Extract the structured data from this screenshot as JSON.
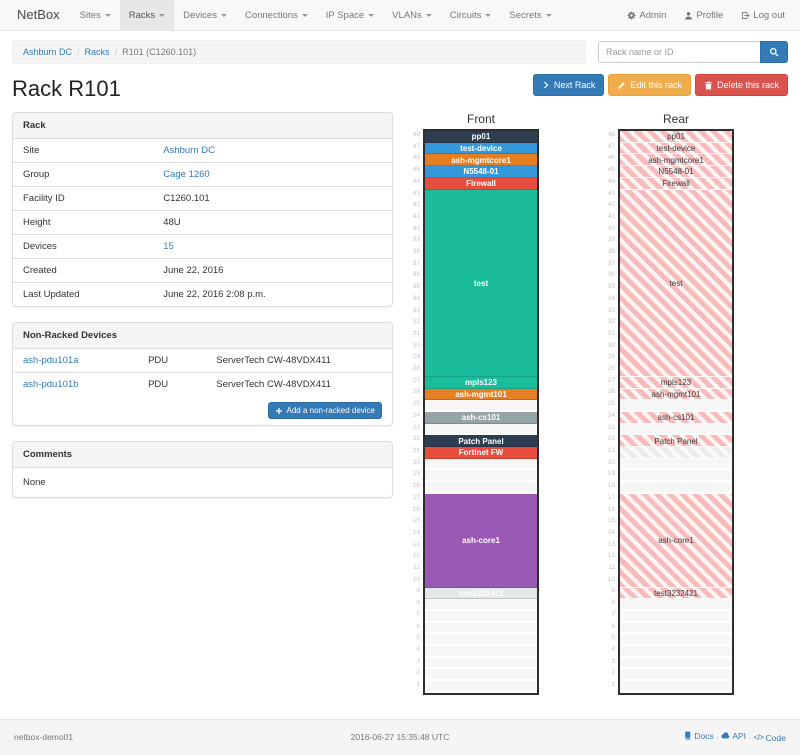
{
  "nav": {
    "brand": "NetBox",
    "items": [
      {
        "label": "Sites",
        "active": false
      },
      {
        "label": "Racks",
        "active": true
      },
      {
        "label": "Devices",
        "active": false
      },
      {
        "label": "Connections",
        "active": false
      },
      {
        "label": "IP Space",
        "active": false
      },
      {
        "label": "VLANs",
        "active": false
      },
      {
        "label": "Circuits",
        "active": false
      },
      {
        "label": "Secrets",
        "active": false
      }
    ],
    "right": [
      {
        "label": "Admin",
        "icon": "gear"
      },
      {
        "label": "Profile",
        "icon": "person"
      },
      {
        "label": "Log out",
        "icon": "logout"
      }
    ]
  },
  "breadcrumb": {
    "items": [
      {
        "label": "Ashburn DC",
        "link": true
      },
      {
        "label": "Racks",
        "link": true
      },
      {
        "label": "R101 (C1260.101)",
        "link": false
      }
    ]
  },
  "search": {
    "placeholder": "Rack name or ID"
  },
  "page": {
    "title": "Rack R101"
  },
  "actions": {
    "next": "Next Rack",
    "edit": "Edit this rack",
    "delete": "Delete this rack"
  },
  "rack_info": {
    "title": "Rack",
    "rows": [
      {
        "label": "Site",
        "value": "Ashburn DC",
        "link": true
      },
      {
        "label": "Group",
        "value": "Cage 1260",
        "link": true
      },
      {
        "label": "Facility ID",
        "value": "C1260.101",
        "link": false
      },
      {
        "label": "Height",
        "value": "48U",
        "link": false
      },
      {
        "label": "Devices",
        "value": "15",
        "link": true
      },
      {
        "label": "Created",
        "value": "June 22, 2016",
        "link": false
      },
      {
        "label": "Last Updated",
        "value": "June 22, 2016 2:08 p.m.",
        "link": false
      }
    ]
  },
  "non_racked": {
    "title": "Non-Racked Devices",
    "devices": [
      {
        "name": "ash-pdu101a",
        "role": "PDU",
        "model": "ServerTech CW-48VDX411"
      },
      {
        "name": "ash-pdu101b",
        "role": "PDU",
        "model": "ServerTech CW-48VDX411"
      }
    ],
    "add_label": "Add a non-racked device"
  },
  "comments": {
    "title": "Comments",
    "body": "None"
  },
  "elevation": {
    "front_label": "Front",
    "rear_label": "Rear",
    "total_units": 48,
    "devices": [
      {
        "u": 48,
        "span": 1,
        "name": "pp01",
        "color": "#2c3e50"
      },
      {
        "u": 47,
        "span": 1,
        "name": "test-device",
        "color": "#3498db"
      },
      {
        "u": 46,
        "span": 1,
        "name": "ash-mgmtcore1",
        "color": "#e67e22"
      },
      {
        "u": 45,
        "span": 1,
        "name": "N5548-01",
        "color": "#3498db"
      },
      {
        "u": 44,
        "span": 1,
        "name": "Firewall",
        "color": "#e74c3c"
      },
      {
        "u": 28,
        "span": 16,
        "name": "test",
        "color": "#1abc9c"
      },
      {
        "u": 27,
        "span": 1,
        "name": "mpls123",
        "color": "#1abc9c"
      },
      {
        "u": 26,
        "span": 1,
        "name": "ash-mgmt101",
        "color": "#e67e22"
      },
      {
        "u": 24,
        "span": 1,
        "name": "ash-cs101",
        "color": "#95a5a6"
      },
      {
        "u": 22,
        "span": 1,
        "name": "Patch Panel",
        "color": "#2c3e50"
      },
      {
        "u": 21,
        "span": 1,
        "name": "Fortinet FW",
        "color": "#e74c3c",
        "rear_style": "gray"
      },
      {
        "u": 10,
        "span": 8,
        "name": "ash-core1",
        "color": "#9b59b6"
      },
      {
        "u": 9,
        "span": 1,
        "name": "test3232421",
        "color": "#e4e8e9"
      }
    ]
  },
  "footer": {
    "hostname": "netbox-demo01",
    "timestamp": "2016-06-27 15:35:48 UTC",
    "links": [
      {
        "label": "Docs",
        "icon": "book"
      },
      {
        "label": "API",
        "icon": "cloud"
      },
      {
        "label": "Code",
        "icon": "code"
      }
    ]
  },
  "colors": {
    "accent": "#337ab7",
    "warning": "#f0ad4e",
    "danger": "#d9534f",
    "navbar_bg": "#f8f8f8",
    "rear_hatch": "#f6bcbc"
  }
}
